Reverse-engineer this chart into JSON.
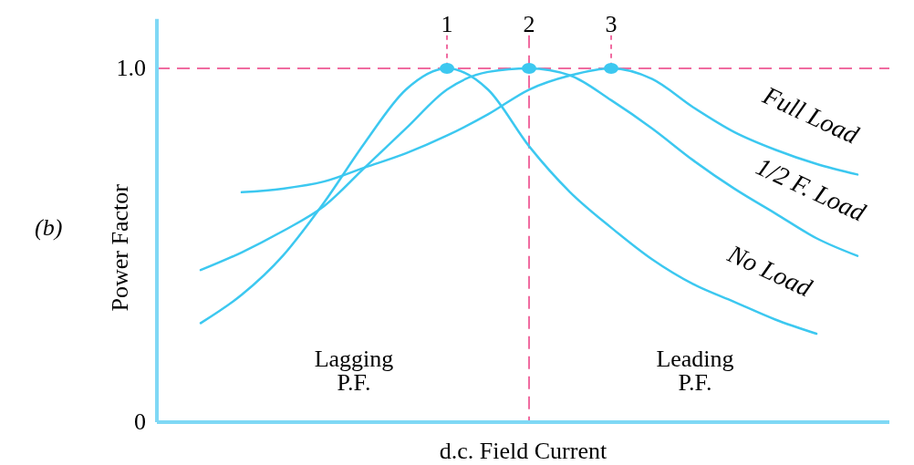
{
  "chart_data": {
    "type": "line",
    "xlabel": "d.c. Field Current",
    "ylabel": "Power Factor",
    "categories": [
      null,
      null,
      null,
      null,
      null,
      null,
      null,
      null,
      null,
      null,
      null,
      null,
      null,
      null,
      null,
      null,
      null
    ],
    "series": [
      {
        "name": "No Load",
        "color": "#3cc8f0",
        "values": [
          0.28,
          0.36,
          0.47,
          0.62,
          0.79,
          0.94,
          1.0,
          0.94,
          0.78,
          0.65,
          0.55,
          0.46,
          0.39,
          0.34,
          0.29,
          0.25,
          null
        ]
      },
      {
        "name": "1/2 F. Load",
        "color": "#3cc8f0",
        "values": [
          0.43,
          0.48,
          0.54,
          0.61,
          0.72,
          0.83,
          0.94,
          0.99,
          1.0,
          0.98,
          0.91,
          0.83,
          0.74,
          0.66,
          0.59,
          0.52,
          0.47
        ]
      },
      {
        "name": "Full Load",
        "color": "#3cc8f0",
        "values": [
          null,
          0.65,
          0.66,
          0.68,
          0.72,
          0.76,
          0.81,
          0.87,
          0.94,
          0.98,
          1.0,
          0.97,
          0.89,
          0.82,
          0.77,
          0.73,
          0.7
        ]
      },
      {
        "type": "scatter",
        "color": "#3cc8f0",
        "marker": "circle",
        "values": [
          null,
          null,
          null,
          null,
          null,
          null,
          1.0,
          null,
          1.0,
          null,
          1.0,
          null,
          null,
          null,
          null,
          null,
          null
        ]
      }
    ],
    "ylim": [
      0,
      1.14
    ],
    "yticks": [
      0,
      {
        "value": 1,
        "label": "1.0"
      }
    ],
    "tick_labels": "y",
    "grid": false,
    "marker": "none",
    "line_style": "solid",
    "ref_lines": [
      {
        "axis": "y",
        "value": 1,
        "color": "#f06ba0",
        "line_style": "dashed"
      }
    ],
    "annotations": [
      "(b)",
      "Lagging\nP.F.",
      "Leading\nP.F.",
      "1",
      "2",
      "3"
    ]
  }
}
